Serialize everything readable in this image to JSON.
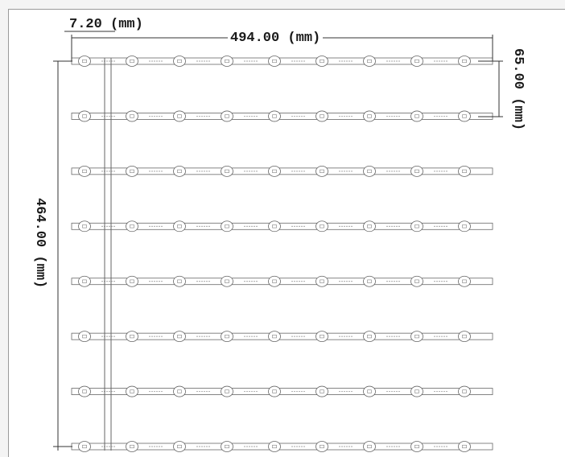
{
  "dimensions": {
    "pitch": "7.20 (mm)",
    "width": "494.00 (mm)",
    "strip_height": "65.00 (mm)",
    "total_height": "464.00 (mm)"
  },
  "board": {
    "strip_count": 8,
    "leds_per_strip": 9,
    "line_color": "#666666",
    "dim_color": "#1a1a1a"
  }
}
